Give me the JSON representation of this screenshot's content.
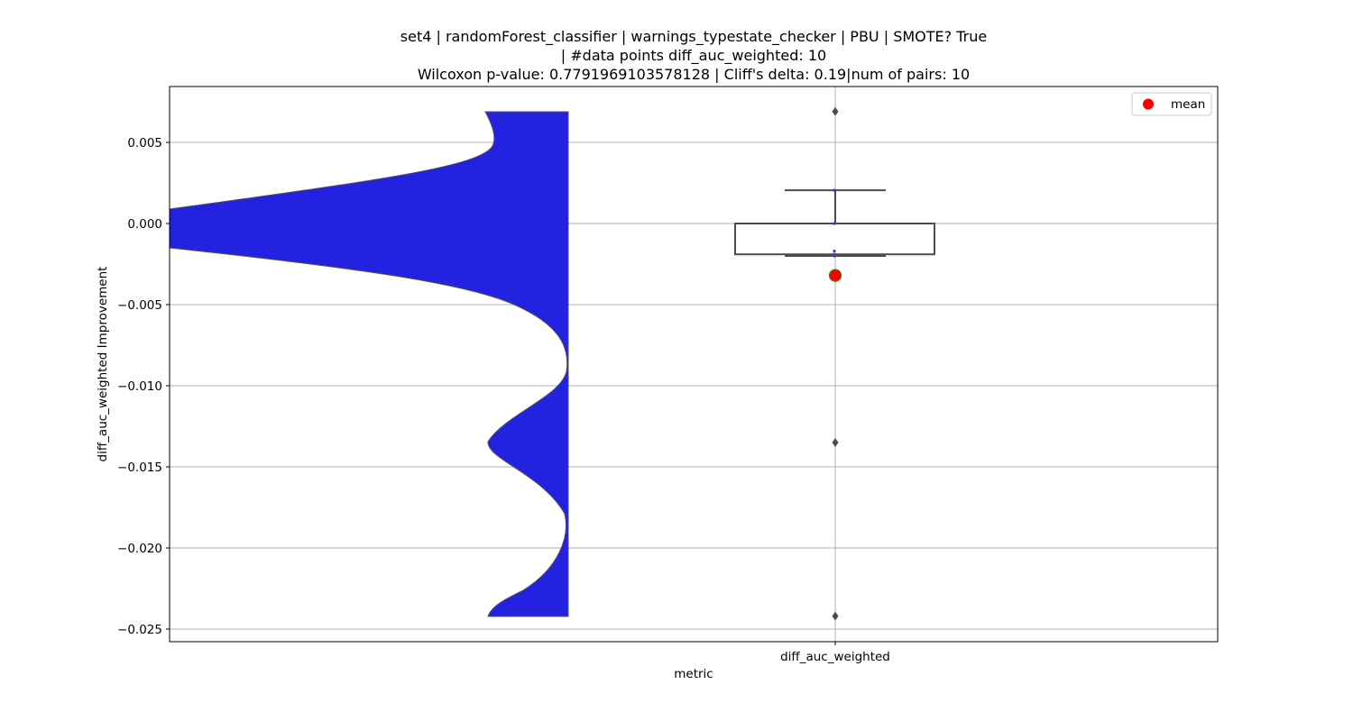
{
  "chart_data": {
    "type": "violin+box",
    "title_lines": [
      "set4 | randomForest_classifier | warnings_typestate_checker | PBU | SMOTE? True",
      "| #data points diff_auc_weighted: 10",
      "Wilcoxon p-value: 0.7791969103578128 | Cliff's delta: 0.19|num of pairs: 10"
    ],
    "xlabel": "metric",
    "ylabel": "diff_auc_weighted Improvement",
    "categories": [
      "diff_auc_weighted"
    ],
    "ylim": [
      -0.0257,
      0.0034
    ],
    "yticks": [
      0.005,
      0.0,
      -0.005,
      -0.01,
      -0.015,
      -0.02,
      -0.025
    ],
    "ytick_labels": [
      "0.005",
      "0.000",
      "−0.005",
      "−0.010",
      "−0.015",
      "−0.020",
      "−0.025"
    ],
    "grid": true,
    "legend": {
      "position": "top-right",
      "entries": [
        {
          "label": "mean",
          "color": "#ff0000"
        }
      ]
    },
    "violin": {
      "color": "#2222e0",
      "edge_color": "#555555",
      "y_range": [
        -0.0242,
        0.0069
      ]
    },
    "box": {
      "q1": -0.0019,
      "median": 0.0,
      "q3": 0.0,
      "whisker_low": -0.002,
      "whisker_high": 0.00205,
      "mean": -0.0032,
      "outliers": [
        0.0069,
        -0.0135,
        -0.0242
      ]
    },
    "points": [
      0.00205,
      0.0,
      0.0,
      -0.0017,
      -0.0019,
      -0.002,
      -0.002
    ]
  },
  "colors": {
    "violin_fill": "#2222e0",
    "mean_marker": "#ff0000",
    "mean_edge": "#3a7a1a",
    "box_line": "#4d4d4d",
    "grid": "#b0b0b0"
  }
}
